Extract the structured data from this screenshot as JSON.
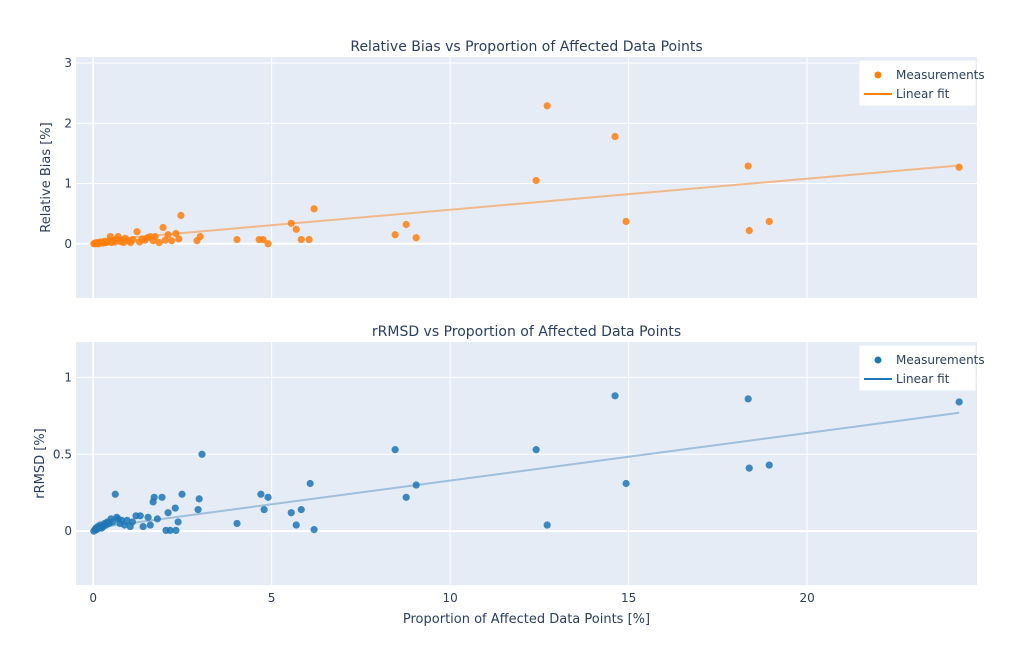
{
  "chart_data": [
    {
      "type": "scatter",
      "title": "Relative Bias vs Proportion of Affected Data Points",
      "xlabel": "",
      "ylabel": "Relative Bias [%]",
      "xlim": [
        -0.48,
        24.76
      ],
      "ylim": [
        -0.9,
        3.1
      ],
      "yticks": [
        0,
        1,
        2,
        3
      ],
      "xticks": [
        0,
        5,
        10,
        15,
        20
      ],
      "grid": true,
      "legend": "top-right",
      "color": "#ff7f0e",
      "fit_color": "#f0b98a",
      "series": [
        {
          "name": "Measurements",
          "mode": "markers",
          "x": [
            0.02,
            0.05,
            0.08,
            0.1,
            0.13,
            0.16,
            0.2,
            0.24,
            0.28,
            0.32,
            0.36,
            0.4,
            0.45,
            0.48,
            0.52,
            0.58,
            0.62,
            0.66,
            0.7,
            0.76,
            0.8,
            0.85,
            0.9,
            0.98,
            1.05,
            1.12,
            1.23,
            1.3,
            1.37,
            1.45,
            1.52,
            1.6,
            1.68,
            1.74,
            1.85,
            1.96,
            2.02,
            2.1,
            2.2,
            2.32,
            2.4,
            2.46,
            2.91,
            3.0,
            4.03,
            4.65,
            4.76,
            4.9,
            5.55,
            5.69,
            5.83,
            6.05,
            6.19,
            8.46,
            8.77,
            9.05,
            12.41,
            12.72,
            14.62,
            14.93,
            18.35,
            18.38,
            18.94,
            24.26
          ],
          "y": [
            0.0,
            0.01,
            0.0,
            0.02,
            0.01,
            0.0,
            0.03,
            0.02,
            0.01,
            0.04,
            0.02,
            0.03,
            0.05,
            0.12,
            0.02,
            0.06,
            0.03,
            0.08,
            0.12,
            0.04,
            0.06,
            0.02,
            0.09,
            0.05,
            0.02,
            0.07,
            0.2,
            0.03,
            0.08,
            0.06,
            0.1,
            0.12,
            0.05,
            0.12,
            0.02,
            0.27,
            0.06,
            0.15,
            0.05,
            0.17,
            0.08,
            0.47,
            0.05,
            0.12,
            0.07,
            0.07,
            0.07,
            0.0,
            0.34,
            0.24,
            0.07,
            0.07,
            0.58,
            0.15,
            0.32,
            0.1,
            1.05,
            2.29,
            1.78,
            0.37,
            1.29,
            0.22,
            0.37,
            1.27
          ]
        },
        {
          "name": "Linear fit",
          "mode": "lines",
          "x": [
            0,
            24.26
          ],
          "y": [
            0.05,
            1.3
          ]
        }
      ]
    },
    {
      "type": "scatter",
      "title": "rRMSD vs Proportion of Affected Data Points",
      "xlabel": "Proportion of Affected Data Points [%]",
      "ylabel": "rRMSD [%]",
      "xlim": [
        -0.48,
        24.76
      ],
      "ylim": [
        -0.35,
        1.23
      ],
      "yticks": [
        0,
        0.5,
        1
      ],
      "xticks": [
        0,
        5,
        10,
        15,
        20
      ],
      "grid": true,
      "legend": "top-right",
      "color": "#1f77b4",
      "fit_color": "#9dbfdc",
      "series": [
        {
          "name": "Measurements",
          "mode": "markers",
          "x": [
            0.02,
            0.05,
            0.08,
            0.1,
            0.13,
            0.16,
            0.2,
            0.24,
            0.28,
            0.32,
            0.36,
            0.4,
            0.45,
            0.5,
            0.55,
            0.62,
            0.66,
            0.7,
            0.75,
            0.8,
            0.88,
            0.95,
            1.04,
            1.1,
            1.2,
            1.32,
            1.4,
            1.54,
            1.6,
            1.68,
            1.71,
            1.8,
            1.93,
            2.04,
            2.1,
            2.16,
            2.3,
            2.32,
            2.38,
            2.49,
            2.94,
            2.97,
            3.05,
            4.03,
            4.7,
            4.79,
            4.9,
            5.55,
            5.69,
            5.83,
            6.08,
            6.19,
            8.46,
            8.77,
            9.05,
            12.41,
            12.72,
            14.62,
            14.93,
            18.35,
            18.38,
            18.94,
            24.26
          ],
          "y": [
            0.0,
            0.01,
            0.02,
            0.01,
            0.03,
            0.02,
            0.04,
            0.02,
            0.03,
            0.05,
            0.04,
            0.06,
            0.05,
            0.08,
            0.06,
            0.24,
            0.09,
            0.08,
            0.05,
            0.07,
            0.04,
            0.07,
            0.03,
            0.06,
            0.1,
            0.1,
            0.03,
            0.09,
            0.04,
            0.19,
            0.22,
            0.08,
            0.22,
            0.005,
            0.12,
            0.005,
            0.15,
            0.005,
            0.06,
            0.24,
            0.14,
            0.21,
            0.5,
            0.05,
            0.24,
            0.14,
            0.22,
            0.12,
            0.04,
            0.14,
            0.31,
            0.01,
            0.53,
            0.22,
            0.3,
            0.53,
            0.04,
            0.88,
            0.31,
            0.86,
            0.41,
            0.43,
            0.84
          ]
        },
        {
          "name": "Linear fit",
          "mode": "lines",
          "x": [
            0,
            24.26
          ],
          "y": [
            0.02,
            0.77
          ]
        }
      ]
    }
  ]
}
